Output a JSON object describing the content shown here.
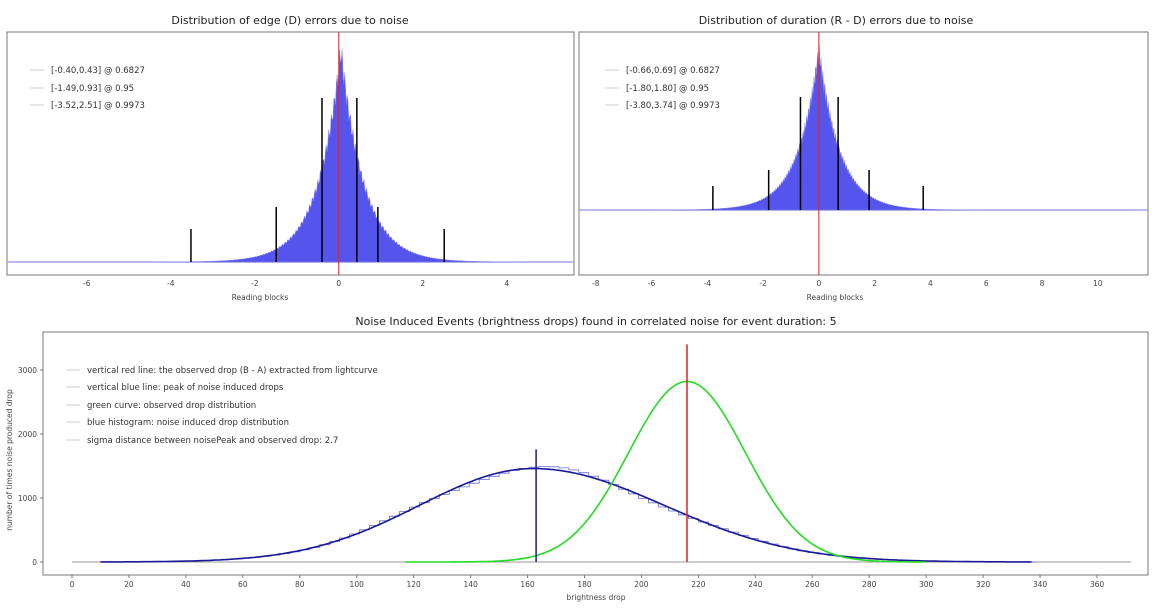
{
  "chart_data": [
    {
      "type": "bar",
      "title": "Distribution of edge (D) errors due to noise",
      "xlabel": "Reading blocks",
      "ylabel": "",
      "xlim": [
        -7.9,
        5.6
      ],
      "xticks": [
        -6,
        -4,
        -2,
        0,
        2,
        4
      ],
      "grid": false,
      "legend_placement": "top-left",
      "legend": [
        "[-0.40,0.43] @ 0.6827",
        "[-1.49,0.93] @ 0.95",
        "[-3.52,2.51] @ 0.9973"
      ],
      "intervals": [
        {
          "low": -0.4,
          "high": 0.43,
          "level": 0.6827
        },
        {
          "low": -1.49,
          "high": 0.93,
          "level": 0.95
        },
        {
          "low": -3.52,
          "high": 2.51,
          "level": 0.9973
        }
      ],
      "reference_line_x": 0,
      "histogram_peak_x": 0.05,
      "colors": {
        "histogram": "#5555ee",
        "reference": "#dd2222",
        "interval_marks": "#000000"
      }
    },
    {
      "type": "bar",
      "title": "Distribution of duration (R - D) errors due to noise",
      "xlabel": "Reading blocks",
      "ylabel": "",
      "xlim": [
        -8.6,
        11.8
      ],
      "xticks": [
        -8,
        -6,
        -4,
        -2,
        0,
        2,
        4,
        6,
        8,
        10
      ],
      "grid": false,
      "legend_placement": "top-left",
      "legend": [
        "[-0.66,0.69] @ 0.6827",
        "[-1.80,1.80] @ 0.95",
        "[-3.80,3.74] @ 0.9973"
      ],
      "intervals": [
        {
          "low": -0.66,
          "high": 0.69,
          "level": 0.6827
        },
        {
          "low": -1.8,
          "high": 1.8,
          "level": 0.95
        },
        {
          "low": -3.8,
          "high": 3.74,
          "level": 0.9973
        }
      ],
      "reference_line_x": 0,
      "histogram_peak_x": 0.0,
      "colors": {
        "histogram": "#5555ee",
        "reference": "#dd2222",
        "interval_marks": "#000000"
      }
    },
    {
      "type": "line",
      "title": "Noise Induced Events (brightness drops) found in correlated noise for event duration: 5",
      "xlabel": "brightness drop",
      "ylabel": "number of times noise produced drop",
      "xlim": [
        -10,
        378
      ],
      "ylim": [
        -200,
        3600
      ],
      "xticks": [
        0,
        20,
        40,
        60,
        80,
        100,
        120,
        140,
        160,
        180,
        200,
        220,
        240,
        260,
        280,
        300,
        320,
        340,
        360
      ],
      "yticks": [
        0,
        1000,
        2000,
        3000
      ],
      "grid": false,
      "legend_placement": "top-left",
      "legend": [
        "vertical red line: the observed drop (B - A) extracted from lightcurve",
        "vertical blue line: peak of noise induced drops",
        "green curve: observed drop distribution",
        "blue histogram: noise induced drop distribution",
        "sigma distance between noisePeak and observed drop: 2.7"
      ],
      "series": [
        {
          "kind": "noise_histogram_fit",
          "peak_x": 162,
          "peak_y": 1460,
          "sigma_left": 40,
          "sigma_right": 46,
          "x_range": [
            10,
            337
          ]
        },
        {
          "kind": "observed_drop_curve",
          "peak_x": 216,
          "peak_y": 2820,
          "sigma": 20.5,
          "x_range": [
            117,
            300
          ]
        }
      ],
      "baseline_x_range": [
        0,
        372
      ],
      "observed_drop_x": 216,
      "observed_drop_line_top": 3400,
      "noise_peak_x": 163,
      "noise_peak_line_top": 1760,
      "colors": {
        "noise": "#1a1a99",
        "histogram": "#6b6bd0",
        "observed": "#22dd22",
        "observed_line": "#dd2222",
        "baseline": "#999999"
      }
    }
  ]
}
